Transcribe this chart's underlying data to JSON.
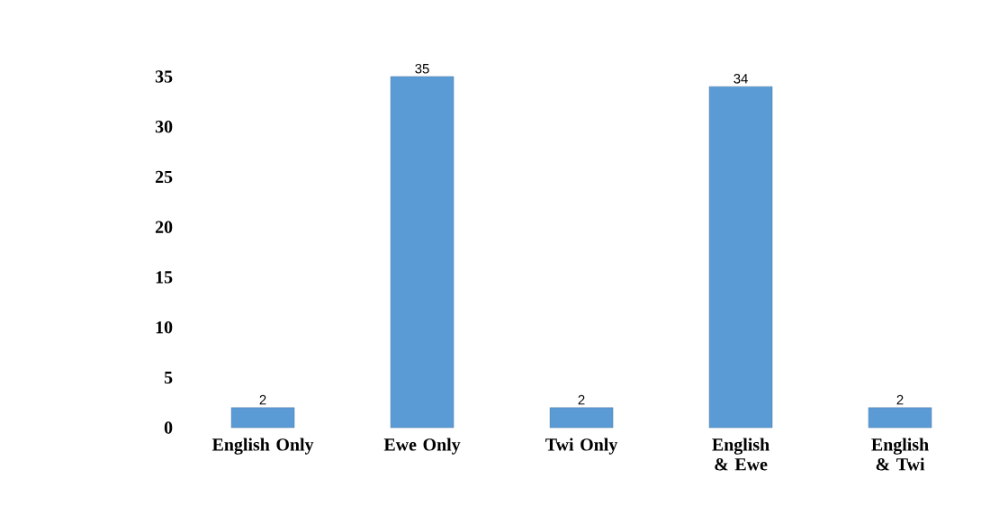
{
  "chart_data": {
    "type": "bar",
    "categories": [
      "English Only",
      "Ewe Only",
      "Twi Only",
      "English & Ewe",
      "English & Twi"
    ],
    "values": [
      2,
      35,
      2,
      34,
      2
    ],
    "color": "#5b9bd5",
    "ylim": [
      0,
      35
    ],
    "yticks": [
      0,
      5,
      10,
      15,
      20,
      25,
      30,
      35
    ],
    "data_labels": true
  }
}
